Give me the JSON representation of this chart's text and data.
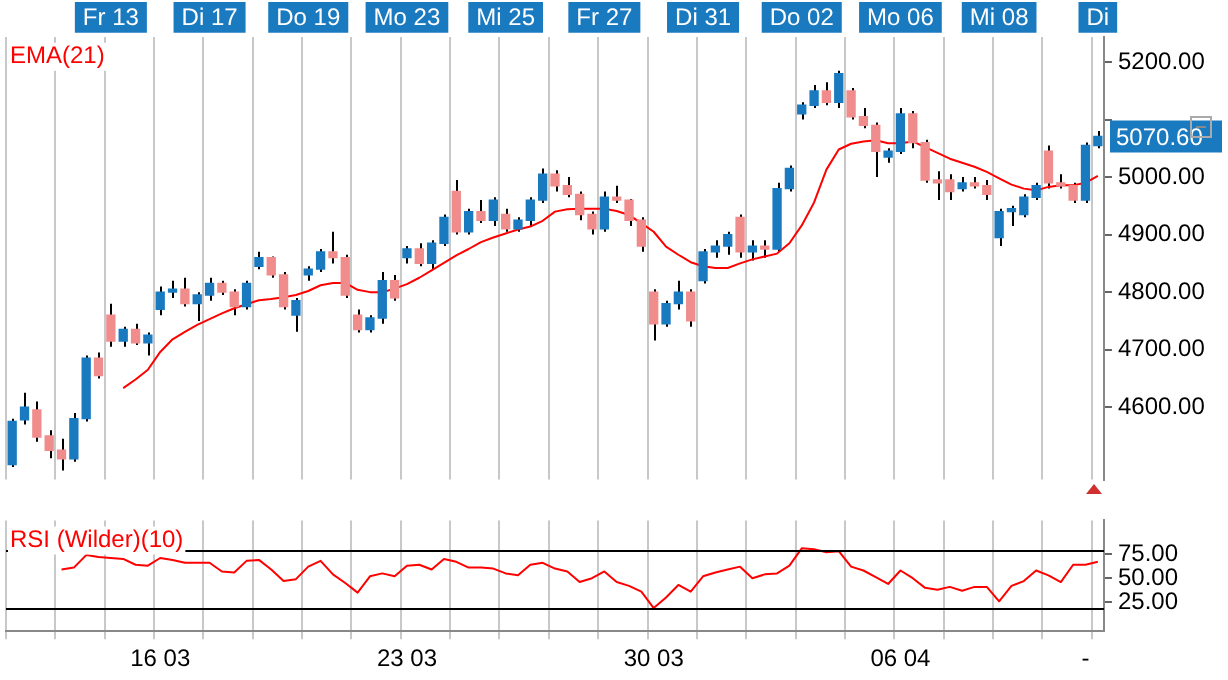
{
  "chart_data": [
    {
      "type": "candlestick",
      "categories": [
        null,
        null,
        null,
        null,
        null,
        null,
        null,
        null,
        "Fr 13",
        null,
        null,
        null,
        null,
        null,
        null,
        null,
        "Di 17",
        null,
        null,
        null,
        null,
        null,
        null,
        null,
        "Do 19",
        null,
        null,
        null,
        null,
        null,
        null,
        null,
        "Mo 23",
        null,
        null,
        null,
        null,
        null,
        null,
        null,
        "Mi 25",
        null,
        null,
        null,
        null,
        null,
        null,
        null,
        "Fr 27",
        null,
        null,
        null,
        null,
        null,
        null,
        null,
        "Di 31",
        null,
        null,
        null,
        null,
        null,
        null,
        null,
        "Do 02",
        null,
        null,
        null,
        null,
        null,
        null,
        null,
        "Mo 06",
        null,
        null,
        null,
        null,
        null,
        null,
        null,
        "Mi 08",
        null,
        null,
        null,
        null,
        null,
        null,
        null,
        "Di"
      ],
      "series": [
        {
          "ohlc": [
            [
              4500,
              4580,
              4496,
              4575
            ],
            [
              4578,
              4625,
              4570,
              4600
            ],
            [
              4595,
              4610,
              4540,
              4548
            ],
            [
              4550,
              4560,
              4511,
              4525
            ],
            [
              4525,
              4545,
              4490,
              4510
            ],
            [
              4510,
              4590,
              4505,
              4580
            ],
            [
              4580,
              4690,
              4575,
              4685
            ],
            [
              4685,
              4695,
              4650,
              4655
            ],
            [
              4760,
              4780,
              4705,
              4715
            ],
            [
              4715,
              4740,
              4705,
              4735
            ],
            [
              4735,
              4745,
              4708,
              4712
            ],
            [
              4712,
              4730,
              4690,
              4725
            ],
            [
              4770,
              4810,
              4760,
              4800
            ],
            [
              4800,
              4820,
              4790,
              4805
            ],
            [
              4805,
              4825,
              4775,
              4780
            ],
            [
              4780,
              4800,
              4750,
              4795
            ],
            [
              4795,
              4825,
              4785,
              4815
            ],
            [
              4815,
              4820,
              4795,
              4800
            ],
            [
              4800,
              4805,
              4760,
              4775
            ],
            [
              4775,
              4820,
              4770,
              4815
            ],
            [
              4845,
              4870,
              4840,
              4860
            ],
            [
              4860,
              4862,
              4825,
              4830
            ],
            [
              4830,
              4835,
              4770,
              4775
            ],
            [
              4760,
              4790,
              4731,
              4785
            ],
            [
              4830,
              4845,
              4820,
              4840
            ],
            [
              4840,
              4875,
              4835,
              4870
            ],
            [
              4870,
              4905,
              4850,
              4860
            ],
            [
              4860,
              4865,
              4790,
              4795
            ],
            [
              4760,
              4770,
              4730,
              4735
            ],
            [
              4735,
              4760,
              4730,
              4755
            ],
            [
              4755,
              4835,
              4745,
              4820
            ],
            [
              4820,
              4830,
              4785,
              4790
            ],
            [
              4860,
              4880,
              4850,
              4875
            ],
            [
              4875,
              4885,
              4845,
              4850
            ],
            [
              4850,
              4890,
              4840,
              4885
            ],
            [
              4885,
              4935,
              4880,
              4930
            ],
            [
              4975,
              4995,
              4900,
              4905
            ],
            [
              4905,
              4945,
              4900,
              4940
            ],
            [
              4940,
              4960,
              4920,
              4925
            ],
            [
              4925,
              4965,
              4915,
              4960
            ],
            [
              4935,
              4945,
              4905,
              4910
            ],
            [
              4910,
              4930,
              4905,
              4925
            ],
            [
              4925,
              4965,
              4915,
              4960
            ],
            [
              4960,
              5015,
              4955,
              5005
            ],
            [
              5005,
              5012,
              4975,
              4985
            ],
            [
              4985,
              5000,
              4965,
              4970
            ],
            [
              4970,
              4975,
              4925,
              4935
            ],
            [
              4935,
              4940,
              4900,
              4910
            ],
            [
              4910,
              4975,
              4905,
              4965
            ],
            [
              4965,
              4985,
              4955,
              4960
            ],
            [
              4960,
              4962,
              4915,
              4925
            ],
            [
              4925,
              4930,
              4870,
              4880
            ],
            [
              4800,
              4805,
              4716,
              4745
            ],
            [
              4745,
              4785,
              4740,
              4780
            ],
            [
              4780,
              4820,
              4770,
              4800
            ],
            [
              4800,
              4805,
              4740,
              4750
            ],
            [
              4820,
              4875,
              4815,
              4870
            ],
            [
              4870,
              4890,
              4860,
              4880
            ],
            [
              4880,
              4905,
              4865,
              4900
            ],
            [
              4930,
              4935,
              4860,
              4870
            ],
            [
              4870,
              4890,
              4855,
              4880
            ],
            [
              4880,
              4890,
              4860,
              4875
            ],
            [
              4875,
              4990,
              4870,
              4980
            ],
            [
              4980,
              5020,
              4975,
              5015
            ],
            [
              5110,
              5130,
              5100,
              5125
            ],
            [
              5125,
              5160,
              5120,
              5150
            ],
            [
              5150,
              5165,
              5125,
              5130
            ],
            [
              5130,
              5185,
              5120,
              5180
            ],
            [
              5150,
              5155,
              5100,
              5105
            ],
            [
              5105,
              5120,
              5085,
              5090
            ],
            [
              5090,
              5095,
              5000,
              5045
            ],
            [
              5035,
              5050,
              5025,
              5045
            ],
            [
              5045,
              5120,
              5040,
              5110
            ],
            [
              5110,
              5115,
              5050,
              5060
            ],
            [
              5060,
              5065,
              4990,
              4995
            ],
            [
              4995,
              5010,
              4960,
              4990
            ],
            [
              4995,
              5005,
              4960,
              4975
            ],
            [
              4980,
              5000,
              4975,
              4990
            ],
            [
              4990,
              5000,
              4980,
              4985
            ],
            [
              4985,
              4995,
              4960,
              4970
            ],
            [
              4895,
              4945,
              4880,
              4940
            ],
            [
              4940,
              4950,
              4915,
              4945
            ],
            [
              4935,
              4970,
              4930,
              4965
            ],
            [
              4965,
              4990,
              4960,
              4985
            ],
            [
              5045,
              5055,
              4980,
              4990
            ],
            [
              4990,
              5005,
              4980,
              4985
            ],
            [
              4985,
              4990,
              4955,
              4960
            ],
            [
              4960,
              5060,
              4955,
              5055
            ],
            [
              5055,
              5080,
              5050,
              5070.6
            ]
          ],
          "colors": [
            "#1a7ac0",
            "#1a7ac0",
            "#f08c8c",
            "#f08c8c",
            "#f08c8c",
            "#1a7ac0",
            "#1a7ac0",
            "#f08c8c",
            "#f08c8c",
            "#1a7ac0",
            "#f08c8c",
            "#1a7ac0",
            "#1a7ac0",
            "#1a7ac0",
            "#f08c8c",
            "#1a7ac0",
            "#1a7ac0",
            "#f08c8c",
            "#f08c8c",
            "#1a7ac0",
            "#1a7ac0",
            "#f08c8c",
            "#f08c8c",
            "#1a7ac0",
            "#1a7ac0",
            "#1a7ac0",
            "#f08c8c",
            "#f08c8c",
            "#f08c8c",
            "#1a7ac0",
            "#1a7ac0",
            "#f08c8c",
            "#1a7ac0",
            "#f08c8c",
            "#1a7ac0",
            "#1a7ac0",
            "#f08c8c",
            "#1a7ac0",
            "#f08c8c",
            "#1a7ac0",
            "#f08c8c",
            "#1a7ac0",
            "#1a7ac0",
            "#1a7ac0",
            "#f08c8c",
            "#f08c8c",
            "#f08c8c",
            "#f08c8c",
            "#1a7ac0",
            "#f08c8c",
            "#f08c8c",
            "#f08c8c",
            "#f08c8c",
            "#1a7ac0",
            "#1a7ac0",
            "#f08c8c",
            "#1a7ac0",
            "#1a7ac0",
            "#1a7ac0",
            "#f08c8c",
            "#1a7ac0",
            "#f08c8c",
            "#1a7ac0",
            "#1a7ac0",
            "#1a7ac0",
            "#1a7ac0",
            "#f08c8c",
            "#1a7ac0",
            "#f08c8c",
            "#f08c8c",
            "#f08c8c",
            "#1a7ac0",
            "#1a7ac0",
            "#f08c8c",
            "#f08c8c",
            "#f08c8c",
            "#f08c8c",
            "#1a7ac0",
            "#f08c8c",
            "#f08c8c",
            "#1a7ac0",
            "#1a7ac0",
            "#1a7ac0",
            "#1a7ac0",
            "#f08c8c",
            "#f08c8c",
            "#f08c8c",
            "#1a7ac0",
            "#1a7ac0"
          ]
        },
        {
          "type": "line",
          "name": "EMA(21)",
          "color": "#ff0000",
          "values": [
            null,
            null,
            null,
            null,
            null,
            null,
            null,
            null,
            null,
            4633,
            4648,
            4665,
            4696,
            4718,
            4731,
            4743,
            4753,
            4763,
            4772,
            4779,
            4786,
            4788,
            4791,
            4795,
            4802,
            4812,
            4816,
            4816,
            4804,
            4800,
            4800,
            4806,
            4814,
            4825,
            4838,
            4851,
            4864,
            4875,
            4887,
            4895,
            4902,
            4909,
            4914,
            4924,
            4940,
            4944,
            4945,
            4945,
            4945,
            4941,
            4934,
            4920,
            4905,
            4879,
            4865,
            4852,
            4845,
            4842,
            4842,
            4850,
            4857,
            4862,
            4867,
            4885,
            4916,
            4956,
            5013,
            5048,
            5058,
            5062,
            5064,
            5059,
            5059,
            5062,
            5052,
            5042,
            5032,
            5025,
            5018,
            5009,
            4998,
            4987,
            4980,
            4977,
            4983,
            4986,
            4986,
            4990,
            5002
          ]
        }
      ],
      "ylim": [
        4474,
        5244
      ],
      "yticks": [
        {
          "value": 4600,
          "label": "4600.00"
        },
        {
          "value": 4700,
          "label": "4700.00"
        },
        {
          "value": 4800,
          "label": "4800.00"
        },
        {
          "value": 4900,
          "label": "4900.00"
        },
        {
          "value": 5000,
          "label": "5000.00"
        },
        {
          "value": 5100,
          "label": null
        },
        {
          "value": 5200,
          "label": "5200.00"
        }
      ],
      "annotations": [
        "5070.60"
      ],
      "grid": "x"
    },
    {
      "type": "line",
      "categories": [
        null,
        null,
        null,
        null,
        null,
        null,
        null,
        null,
        null,
        null,
        null,
        null,
        "16 03",
        null,
        null,
        null,
        null,
        null,
        null,
        null,
        null,
        null,
        null,
        null,
        null,
        null,
        null,
        null,
        null,
        null,
        null,
        null,
        "23 03",
        null,
        null,
        null,
        null,
        null,
        null,
        null,
        null,
        null,
        null,
        null,
        null,
        null,
        null,
        null,
        null,
        null,
        null,
        null,
        "30 03",
        null,
        null,
        null,
        null,
        null,
        null,
        null,
        null,
        null,
        null,
        null,
        null,
        null,
        null,
        null,
        null,
        null,
        null,
        null,
        "06 04",
        null,
        null,
        null,
        null,
        null,
        null,
        null,
        null,
        null,
        null,
        null,
        null,
        null,
        null,
        "-",
        null
      ],
      "series": [
        {
          "name": "RSI (Wilder)(10)",
          "color": "#ff0000",
          "values": [
            null,
            null,
            null,
            null,
            59,
            61,
            74,
            72,
            71,
            70,
            64,
            63,
            71,
            69,
            66,
            66,
            66,
            57,
            56,
            68,
            69,
            59,
            47,
            49,
            62,
            68,
            54,
            45,
            35,
            52,
            55,
            52,
            63,
            64,
            59,
            70,
            67,
            61,
            61,
            60,
            55,
            53,
            64,
            66,
            60,
            57,
            46,
            50,
            57,
            46,
            42,
            36,
            19,
            30,
            43,
            36,
            52,
            56,
            59,
            62,
            50,
            54,
            55,
            63,
            81,
            80,
            77,
            78,
            62,
            58,
            51,
            44,
            58,
            50,
            40,
            38,
            41,
            37,
            41,
            41,
            26,
            42,
            47,
            58,
            53,
            46,
            64,
            64,
            67
          ]
        }
      ],
      "ylim": [
        -5,
        110
      ],
      "yticks": [
        {
          "value": 25,
          "label": "25.00"
        },
        {
          "value": 50,
          "label": "50.00"
        },
        {
          "value": 75,
          "label": "75.00"
        }
      ],
      "ref_lines": [
        {
          "axis": "y",
          "value": 80,
          "color": "#000000"
        },
        {
          "axis": "y",
          "value": 20,
          "color": "#000000"
        }
      ],
      "grid": "x"
    }
  ]
}
